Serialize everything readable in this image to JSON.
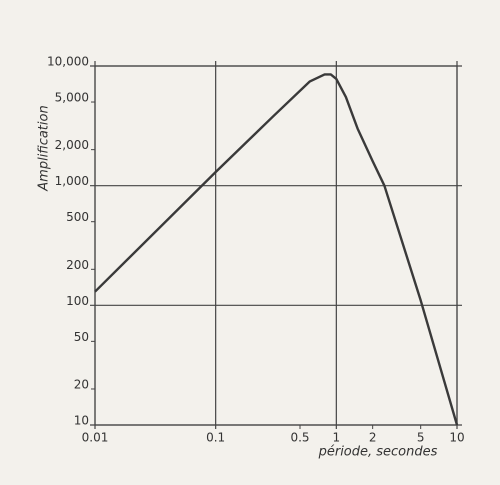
{
  "chart_data": {
    "type": "line",
    "y_label": "Amplification",
    "x_label": "période, secondes",
    "x": [
      0.01,
      0.1,
      0.3,
      0.6,
      0.8,
      0.9,
      1,
      1.2,
      1.5,
      2,
      2.5,
      5,
      10
    ],
    "series": [
      {
        "color": "#3a3a3a",
        "values": [
          130,
          1300,
          3800,
          7400,
          8500,
          8500,
          7800,
          5500,
          3000,
          1600,
          1000,
          110,
          10
        ]
      }
    ],
    "xlog": true,
    "ylog": true,
    "grid": true,
    "xlim": [
      0.01,
      10
    ],
    "ylim": [
      10,
      10000
    ],
    "xticks": [
      0.01,
      0.1,
      0.5,
      1,
      2,
      5,
      10
    ],
    "yticks": [
      10,
      20,
      50,
      100,
      200,
      500,
      {
        "value": 1000,
        "label": "1,000"
      },
      {
        "value": 2000,
        "label": "2,000"
      },
      {
        "value": 5000,
        "label": "5,000"
      },
      {
        "value": 10000,
        "label": "10,000"
      }
    ]
  }
}
